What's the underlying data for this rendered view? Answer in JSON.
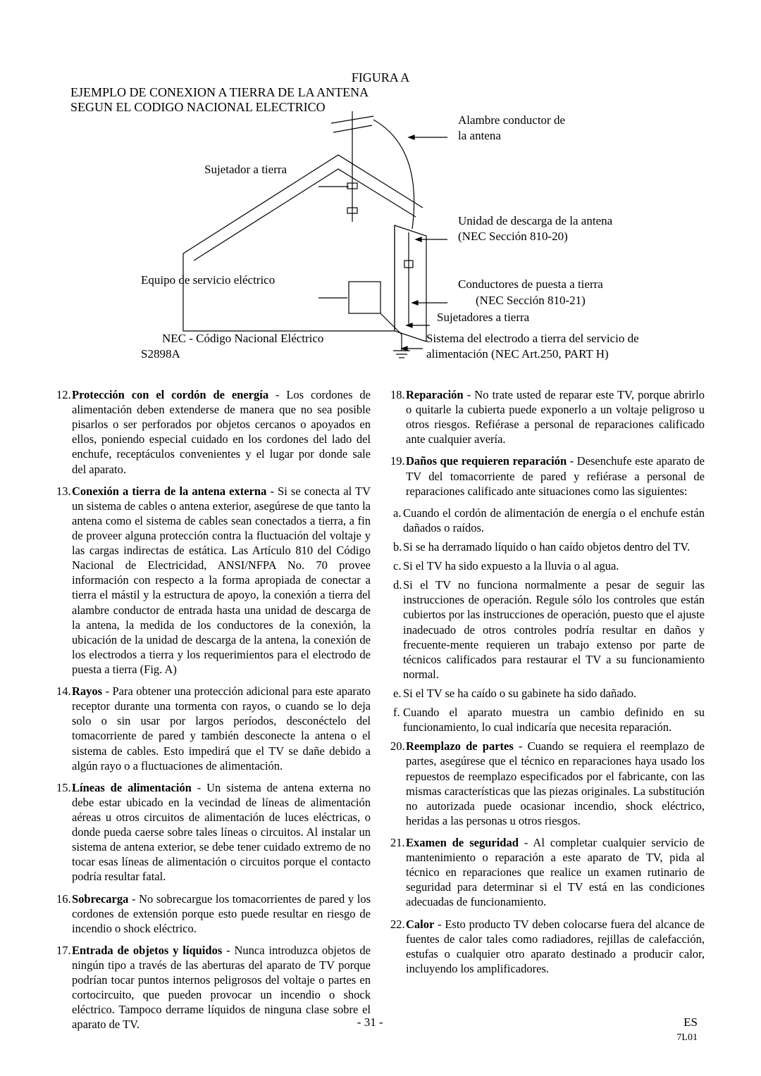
{
  "figure": {
    "title": "FIGURA A",
    "subtitle1": "EJEMPLO DE CONEXION A TIERRA DE LA ANTENA",
    "subtitle2": "SEGUN EL CODIGO NACIONAL ELECTRICO",
    "labels": {
      "sujetador": "Sujetador a tierra",
      "equipo": "Equipo de servicio eléctrico",
      "nec_code": "NEC - Código Nacional Eléctrico",
      "s2898a": "S2898A",
      "alambre1": "Alambre conductor de",
      "alambre2": "la antena",
      "unidad1": "Unidad de descarga de la antena",
      "unidad2": "(NEC Sección 810-20)",
      "conductores1": "Conductores de puesta a tierra",
      "conductores2": "(NEC Sección 810-21)",
      "sujetadores": "Sujetadores a tierra",
      "sistema1": "Sistema del electrodo a tierra del servicio de",
      "sistema2": "alimentación (NEC Art.250, PART H)"
    },
    "stroke": "#000000",
    "stroke_width": 1.1
  },
  "left_items": [
    {
      "n": "12.",
      "bold": "Protección con el cordón de energía",
      "txt": " - Los cordones de alimentación deben extenderse de manera que no sea posible pisarlos o ser perforados por objetos cercanos o apoyados en ellos, poniendo especial cuidado en los cordones del lado del enchufe, receptáculos convenientes y el lugar por donde sale del aparato."
    },
    {
      "n": "13.",
      "bold": "Conexión a tierra de la antena externa",
      "txt": " - Si se conecta al TV un sistema de cables o antena exterior, asegúrese de que tanto la antena como el sistema de cables sean conectados a tierra, a fin de proveer alguna protección contra la fluctuación del voltaje y las cargas indirectas de estática. Las Artículo 810 del Código Nacional de Electricidad, ANSI/NFPA No. 70 provee información con respecto a la forma apropiada de conectar a tierra el mástil y la estructura de apoyo, la conexión a tierra del alambre conductor de entrada hasta una unidad de descarga de la antena, la medida de los conductores de la conexión, la ubicación de la unidad de descarga de la antena, la conexión de los electrodos a tierra y los requerimientos para el electrodo de puesta a tierra (Fig. A)"
    },
    {
      "n": "14.",
      "bold": " Rayos",
      "txt": " - Para obtener una protección adicional para este aparato receptor durante una tormenta con rayos, o cuando se lo deja solo o sin usar por largos períodos, desconéctelo del tomacorriente de pared y también desconecte la antena o el sistema de cables. Esto impedirá que el TV se dañe debido a algún rayo o a fluctuaciones de alimentación."
    },
    {
      "n": "15.",
      "bold": "Líneas de alimentación",
      "txt": " - Un sistema de antena externa no debe estar ubicado en la vecindad de líneas de alimentación aéreas u otros circuitos de alimentación de luces eléctricas, o donde pueda caerse sobre tales líneas o circuitos. Al instalar un sistema de antena exterior, se debe tener cuidado extremo de no tocar esas líneas de alimentación o circuitos porque el contacto podría resultar fatal."
    },
    {
      "n": "16.",
      "bold": "Sobrecarga",
      "txt": " - No sobrecargue los tomacorrientes de pared y los cordones de extensión porque esto puede resultar en riesgo de incendio o shock eléctrico."
    },
    {
      "n": "17.",
      "bold": "Entrada de objetos y líquidos",
      "txt": " - Nunca introduzca objetos de ningún tipo a través de las aberturas del aparato de TV porque podrían tocar puntos internos peligrosos del voltaje o partes en cortocircuito, que pueden provocar un incendio o shock eléctrico. Tampoco derrame líquidos de ninguna clase sobre el aparato de TV."
    }
  ],
  "right_items": [
    {
      "n": "18.",
      "bold": "Reparación",
      "txt": " - No trate usted de reparar este TV, porque abrirlo o quitarle la cubierta puede exponerlo a un voltaje peligroso u otros riesgos. Refiérase a personal de reparaciones calificado ante cualquier avería."
    },
    {
      "n": "19.",
      "bold": "Daños que requieren reparación",
      "txt": " - Desenchufe este aparato de TV del tomacorriente de pared y refiérase a personal de reparaciones calificado ante situaciones como las siguientes:"
    }
  ],
  "subs": [
    {
      "l": "a.",
      "t": "Cuando el cordón de alimentación de energía o el enchufe están dañados o raídos."
    },
    {
      "l": "b.",
      "t": "Si se ha derramado líquido o han caído objetos dentro del TV."
    },
    {
      "l": "c.",
      "t": "Si el TV ha sido expuesto a la lluvia o al agua."
    },
    {
      "l": "d.",
      "t": "Si el TV no funciona normalmente a pesar de seguir las instrucciones de operación. Regule sólo los controles que están cubiertos por las instrucciones de operación, puesto que el ajuste inadecuado de otros controles podría resultar en daños y frecuente-mente requieren un trabajo extenso por parte de técnicos calificados para restaurar el TV a su funcionamiento normal."
    },
    {
      "l": "e.",
      "t": "Si el TV se ha caído o su gabinete ha sido dañado."
    },
    {
      "l": "f.",
      "t": "Cuando el aparato muestra un cambio definido en su funcionamiento, lo cual indicaría que necesita reparación."
    }
  ],
  "right_items2": [
    {
      "n": "20.",
      "bold": "Reemplazo de partes",
      "txt": " - Cuando se requiera el reemplazo de partes, asegúrese que el técnico en reparaciones haya usado los repuestos de reemplazo especificados por el fabricante, con las mismas características que las piezas originales. La substitución no autorizada puede ocasionar incendio, shock eléctrico, heridas a las personas u otros riesgos."
    },
    {
      "n": "21.",
      "bold": "Examen de seguridad",
      "txt": " - Al completar cualquier servicio de mantenimiento o reparación a este aparato de TV, pida al técnico en reparaciones que realice un examen rutinario de seguridad para determinar si el TV está en las condiciones adecuadas de funcionamiento."
    },
    {
      "n": "22.",
      "bold": "Calor",
      "txt": " - Esto producto TV deben colocarse fuera del alcance de fuentes de calor tales como radiadores, rejillas de calefacción, estufas o cualquier otro aparato destinado a producir calor, incluyendo los amplificadores."
    }
  ],
  "footer": {
    "page": "- 31 -",
    "es": "ES",
    "code": "7L01"
  },
  "colors": {
    "bg": "#ffffff",
    "text": "#000000"
  }
}
